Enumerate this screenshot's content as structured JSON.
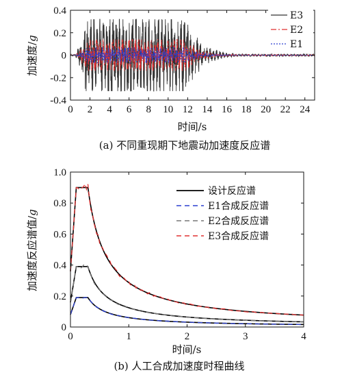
{
  "chart_data": [
    {
      "type": "line",
      "caption": "(a) 不同重现期下地震动加速度反应谱",
      "xlabel": "时间/s",
      "ylabel_text": "加速度/",
      "ylabel_unit": "g",
      "xlim": [
        0,
        25
      ],
      "ylim": [
        -0.4,
        0.4
      ],
      "xticks": [
        "0",
        "2",
        "4",
        "6",
        "8",
        "10",
        "12",
        "14",
        "16",
        "18",
        "20",
        "22",
        "24"
      ],
      "yticks": [
        "-0.4",
        "-0.2",
        "0",
        "0.2",
        "0.4"
      ],
      "legend_position": "top-right",
      "series": [
        {
          "name": "E3",
          "color": "#333333",
          "style": "solid",
          "peak": 0.32,
          "strong_phase": [
            1.5,
            11.5
          ]
        },
        {
          "name": "E2",
          "color": "#e03030",
          "style": "dashdot",
          "peak": 0.14,
          "strong_phase": [
            1.5,
            11.5
          ]
        },
        {
          "name": "E1",
          "color": "#2a3fd0",
          "style": "dotted",
          "peak": 0.07,
          "strong_phase": [
            1.5,
            11.5
          ]
        }
      ]
    },
    {
      "type": "line",
      "caption": "(b) 人工合成加速度时程曲线",
      "xlabel": "时间/s",
      "ylabel_text": "加速度反应谱值/",
      "ylabel_unit": "g",
      "xlim": [
        0,
        4
      ],
      "ylim": [
        0,
        1.0
      ],
      "xticks": [
        "0",
        "1",
        "2",
        "3",
        "4"
      ],
      "yticks": [
        "0",
        "0.2",
        "0.4",
        "0.6",
        "0.8",
        "1.0"
      ],
      "legend_position": "top-right",
      "legend": [
        {
          "name": "设计反应谱",
          "color": "#000000",
          "style": "solid"
        },
        {
          "name": "E1合成反应谱",
          "color": "#2a3fd0",
          "style": "dashed"
        },
        {
          "name": "E2合成反应谱",
          "color": "#777777",
          "style": "dashed"
        },
        {
          "name": "E3合成反应谱",
          "color": "#e03030",
          "style": "dashed"
        }
      ],
      "design_spectra": [
        {
          "level": "E1",
          "a0": 0.08,
          "amax": 0.19,
          "t1": 0.1,
          "tg": 0.3,
          "x": [
            0,
            0.1,
            0.3,
            0.5,
            1.0,
            1.5,
            2.0,
            2.5,
            3.0,
            3.5,
            4.0
          ],
          "y": [
            0.08,
            0.19,
            0.19,
            0.117,
            0.06,
            0.041,
            0.031,
            0.025,
            0.021,
            0.018,
            0.016
          ]
        },
        {
          "level": "E2",
          "a0": 0.16,
          "amax": 0.39,
          "t1": 0.1,
          "tg": 0.3,
          "x": [
            0,
            0.1,
            0.3,
            0.5,
            1.0,
            1.5,
            2.0,
            2.5,
            3.0,
            3.5,
            4.0
          ],
          "y": [
            0.16,
            0.39,
            0.39,
            0.24,
            0.124,
            0.084,
            0.064,
            0.052,
            0.043,
            0.037,
            0.033
          ]
        },
        {
          "level": "E3",
          "a0": 0.36,
          "amax": 0.9,
          "t1": 0.1,
          "tg": 0.3,
          "x": [
            0,
            0.1,
            0.3,
            0.5,
            1.0,
            1.5,
            2.0,
            2.5,
            3.0,
            3.5,
            4.0
          ],
          "y": [
            0.36,
            0.9,
            0.9,
            0.553,
            0.285,
            0.193,
            0.146,
            0.118,
            0.099,
            0.086,
            0.075
          ]
        }
      ]
    }
  ]
}
